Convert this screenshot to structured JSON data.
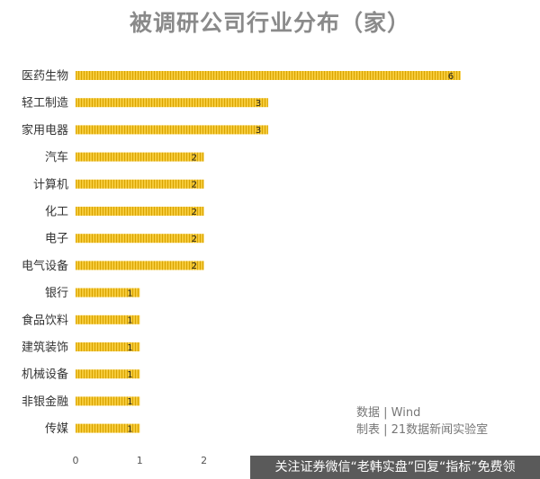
{
  "chart_data": {
    "type": "bar",
    "orientation": "horizontal",
    "title": "被调研公司行业分布（家）",
    "categories": [
      "医药生物",
      "轻工制造",
      "家用电器",
      "汽车",
      "计算机",
      "化工",
      "电子",
      "电气设备",
      "银行",
      "食品饮料",
      "建筑装饰",
      "机械设备",
      "非银金融",
      "传媒"
    ],
    "values": [
      6,
      3,
      3,
      2,
      2,
      2,
      2,
      2,
      1,
      1,
      1,
      1,
      1,
      1
    ],
    "x_ticks": [
      "0",
      "1",
      "2"
    ],
    "xlim": [
      0,
      6
    ],
    "grid": false,
    "legend": "none",
    "bar_color": "#f2c12e",
    "bar_stripe_color": "#e0a800"
  },
  "source": {
    "line1": "数据 | Wind",
    "line2": "制表 | 21数据新闻实验室"
  },
  "watermark": "关注证券微信“老韩实盘”回复“指标”免费领"
}
